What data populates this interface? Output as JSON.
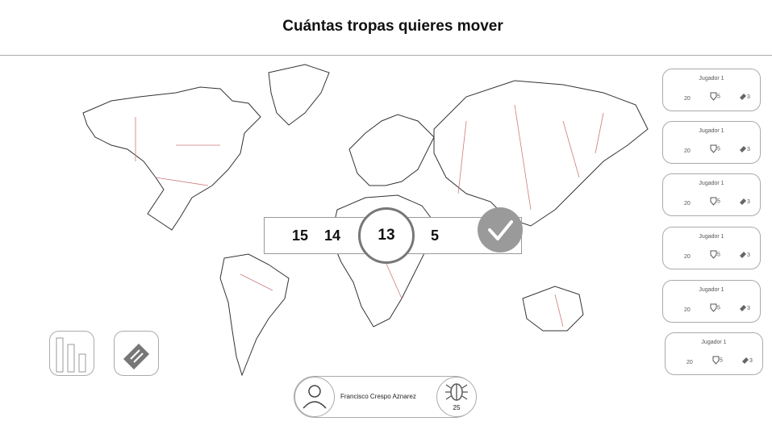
{
  "header": {
    "title": "Cuántas tropas quieres mover"
  },
  "picker": {
    "values": [
      "15",
      "14",
      "13",
      "5"
    ],
    "selected": "13"
  },
  "players": [
    {
      "name": "Jugador 1",
      "troops": "20",
      "cards": "5",
      "territories": "3"
    },
    {
      "name": "Jugador 1",
      "troops": "20",
      "cards": "5",
      "territories": "3"
    },
    {
      "name": "Jugador 1",
      "troops": "20",
      "cards": "5",
      "territories": "3"
    },
    {
      "name": "Jugador 1",
      "troops": "20",
      "cards": "5",
      "territories": "3"
    },
    {
      "name": "Jugador 1",
      "troops": "20",
      "cards": "5",
      "territories": "3"
    },
    {
      "name": "Jugador 1",
      "troops": "20",
      "cards": "5",
      "territories": "3"
    }
  ],
  "user": {
    "name": "Francisco Crespo Aznarez",
    "bug_count": "25"
  },
  "icons": {
    "confirm": "check-icon",
    "stats": "bar-chart-icon",
    "cards": "ticket-icon",
    "avatar": "user-icon",
    "bug": "bug-icon",
    "card": "shield-card-icon",
    "territory": "ticket-icon"
  },
  "colors": {
    "border_line": "#cc7a7a",
    "coast": "#333333",
    "confirm_bg": "#9a9a9a"
  }
}
